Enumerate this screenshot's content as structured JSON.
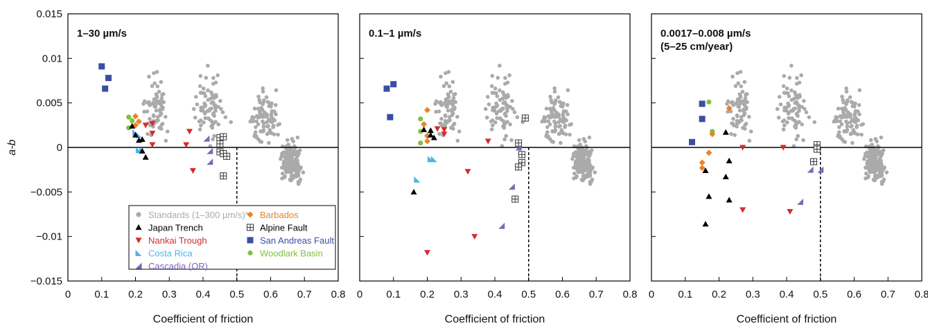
{
  "chart_data": {
    "type": "scatter",
    "xlabel": "Coefficient of friction",
    "ylabel": "a-b",
    "xlim": [
      0,
      0.8
    ],
    "ylim": [
      -0.015,
      0.015
    ],
    "xticks": [
      "0",
      "0.1",
      "0.2",
      "0.3",
      "0.4",
      "0.5",
      "0.6",
      "0.7",
      "0.8"
    ],
    "yticks": [
      "0.015",
      "0.01",
      "0.005",
      "0",
      "−0.005",
      "−0.01",
      "−0.015"
    ],
    "reference_line": {
      "x": 0.5
    },
    "legend": {
      "placement": "bottom-left of first panel",
      "entries": [
        {
          "key": "standards",
          "label": "Standards (1–300 µm/s)*",
          "color": "#aaaaaa",
          "marker": "circle"
        },
        {
          "key": "japan",
          "label": "Japan Trench",
          "color": "#000000",
          "marker": "triangle-up"
        },
        {
          "key": "nankai",
          "label": "Nankai Trough",
          "color": "#d62b2b",
          "marker": "triangle-down"
        },
        {
          "key": "costa",
          "label": "Costa Rica",
          "color": "#4fb4e6",
          "marker": "triangle-right"
        },
        {
          "key": "cascadia",
          "label": "Cascadia (OR)",
          "color": "#7a67b8",
          "marker": "triangle-left"
        },
        {
          "key": "barbados",
          "label": "Barbados",
          "color": "#e8832a",
          "marker": "diamond"
        },
        {
          "key": "alpine",
          "label": "Alpine Fault",
          "color": "#333333",
          "marker": "square-cross"
        },
        {
          "key": "sanandreas",
          "label": "San Andreas Fault",
          "color": "#3b4ea3",
          "marker": "square"
        },
        {
          "key": "woodlark",
          "label": "Woodlark Basin",
          "color": "#7dc242",
          "marker": "circle"
        }
      ]
    },
    "panels": [
      {
        "title_lines": [
          "1–30 µm/s"
        ],
        "series": {
          "sanandreas": [
            [
              0.1,
              0.0091
            ],
            [
              0.12,
              0.0078
            ],
            [
              0.11,
              0.0066
            ]
          ],
          "woodlark": [
            [
              0.18,
              0.0034
            ],
            [
              0.18,
              0.0022
            ],
            [
              0.19,
              0.003
            ]
          ],
          "barbados": [
            [
              0.2,
              0.0035
            ],
            [
              0.2,
              0.0025
            ],
            [
              0.21,
              0.0029
            ]
          ],
          "costa": [
            [
              0.2,
              0.0017
            ],
            [
              0.21,
              0.0014
            ],
            [
              0.21,
              -0.0003
            ],
            [
              0.22,
              -0.0003
            ]
          ],
          "japan": [
            [
              0.19,
              0.0024
            ],
            [
              0.2,
              0.0014
            ],
            [
              0.21,
              0.0008
            ],
            [
              0.22,
              0.0009
            ],
            [
              0.22,
              -0.0004
            ],
            [
              0.23,
              -0.0011
            ]
          ],
          "nankai": [
            [
              0.23,
              0.0025
            ],
            [
              0.25,
              0.0027
            ],
            [
              0.25,
              0.0016
            ],
            [
              0.25,
              0.0003
            ],
            [
              0.36,
              0.0018
            ],
            [
              0.35,
              0.0003
            ],
            [
              0.37,
              -0.0026
            ]
          ],
          "cascadia": [
            [
              0.41,
              0.001
            ],
            [
              0.42,
              -0.0004
            ],
            [
              0.42,
              -0.0016
            ]
          ],
          "alpine": [
            [
              0.45,
              0.0011
            ],
            [
              0.46,
              0.0012
            ],
            [
              0.45,
              0.0004
            ],
            [
              0.45,
              -0.0005
            ],
            [
              0.46,
              -0.0007
            ],
            [
              0.47,
              -0.001
            ],
            [
              0.46,
              -0.0032
            ]
          ]
        }
      },
      {
        "title_lines": [
          "0.1–1 µm/s"
        ],
        "series": {
          "sanandreas": [
            [
              0.08,
              0.0066
            ],
            [
              0.1,
              0.0071
            ],
            [
              0.09,
              0.0034
            ]
          ],
          "woodlark": [
            [
              0.18,
              0.0032
            ],
            [
              0.18,
              0.0018
            ],
            [
              0.18,
              0.0005
            ]
          ],
          "barbados": [
            [
              0.2,
              0.0042
            ],
            [
              0.19,
              0.0026
            ],
            [
              0.2,
              0.0013
            ],
            [
              0.2,
              0.0007
            ]
          ],
          "costa": [
            [
              0.21,
              -0.0013
            ],
            [
              0.22,
              -0.0013
            ],
            [
              0.17,
              -0.0036
            ]
          ],
          "japan": [
            [
              0.19,
              0.002
            ],
            [
              0.21,
              0.0019
            ],
            [
              0.21,
              0.0014
            ],
            [
              0.22,
              0.0011
            ],
            [
              0.16,
              -0.005
            ]
          ],
          "nankai": [
            [
              0.23,
              0.0021
            ],
            [
              0.25,
              0.002
            ],
            [
              0.25,
              0.0015
            ],
            [
              0.38,
              0.0007
            ],
            [
              0.32,
              -0.0027
            ],
            [
              0.34,
              -0.01
            ],
            [
              0.2,
              -0.0118
            ]
          ],
          "cascadia": [
            [
              0.47,
              0.0
            ],
            [
              0.45,
              -0.0044
            ],
            [
              0.42,
              -0.0088
            ]
          ],
          "alpine": [
            [
              0.49,
              0.0033
            ],
            [
              0.47,
              0.0005
            ],
            [
              0.48,
              -0.0008
            ],
            [
              0.48,
              -0.0017
            ],
            [
              0.47,
              -0.0022
            ],
            [
              0.46,
              -0.0058
            ]
          ]
        }
      },
      {
        "title_lines": [
          "0.0017–0.008 µm/s",
          "(5–25 cm/year)"
        ],
        "series": {
          "sanandreas": [
            [
              0.15,
              0.0049
            ],
            [
              0.15,
              0.0032
            ],
            [
              0.12,
              0.0006
            ]
          ],
          "woodlark": [
            [
              0.17,
              0.0051
            ],
            [
              0.18,
              0.0018
            ]
          ],
          "barbados": [
            [
              0.23,
              0.0044
            ],
            [
              0.18,
              0.0015
            ],
            [
              0.17,
              -0.0006
            ],
            [
              0.15,
              -0.0017
            ],
            [
              0.15,
              -0.0023
            ]
          ],
          "costa": [],
          "japan": [
            [
              0.22,
              0.0017
            ],
            [
              0.23,
              -0.0015
            ],
            [
              0.16,
              -0.0026
            ],
            [
              0.22,
              -0.0033
            ],
            [
              0.17,
              -0.0055
            ],
            [
              0.23,
              -0.0059
            ],
            [
              0.16,
              -0.0086
            ]
          ],
          "nankai": [
            [
              0.27,
              0.0
            ],
            [
              0.39,
              0.0
            ],
            [
              0.27,
              -0.007
            ],
            [
              0.41,
              -0.0072
            ]
          ],
          "cascadia": [
            [
              0.5,
              -0.0025
            ],
            [
              0.47,
              -0.0025
            ],
            [
              0.44,
              -0.0061
            ]
          ],
          "alpine": [
            [
              0.49,
              0.0003
            ],
            [
              0.49,
              -0.0002
            ],
            [
              0.48,
              -0.0016
            ]
          ]
        }
      }
    ]
  }
}
